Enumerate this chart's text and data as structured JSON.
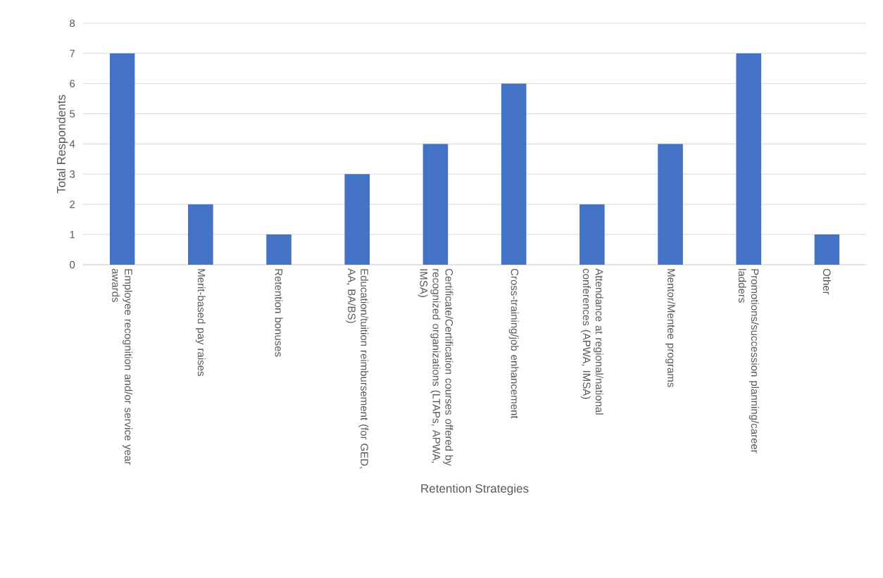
{
  "chart_data": {
    "type": "bar",
    "xlabel": "Retention Strategies",
    "ylabel": "Total Respondents",
    "categories": [
      "Employee recognition and/or service year awards",
      "Merit-based pay raises",
      "Retention bonuses",
      "Education/tuition reimbursement (for GED, AA, BA/BS)",
      "Certificate/Certification courses offered by recognized organizations (LTAPs, APWA, IMSA)",
      "Cross-training/job enhancement",
      "Attendance at regional/national conferences (APWA, IMSA)",
      "Mentor/Mentee programs",
      "Promotions/succession planning/career ladders",
      "Other"
    ],
    "values": [
      7,
      2,
      1,
      3,
      4,
      6,
      2,
      4,
      7,
      1
    ],
    "color": "#4472c4",
    "ylim": [
      0,
      8
    ],
    "yticks": [
      0,
      1,
      2,
      3,
      4,
      5,
      6,
      7,
      8
    ],
    "grid": "y"
  }
}
